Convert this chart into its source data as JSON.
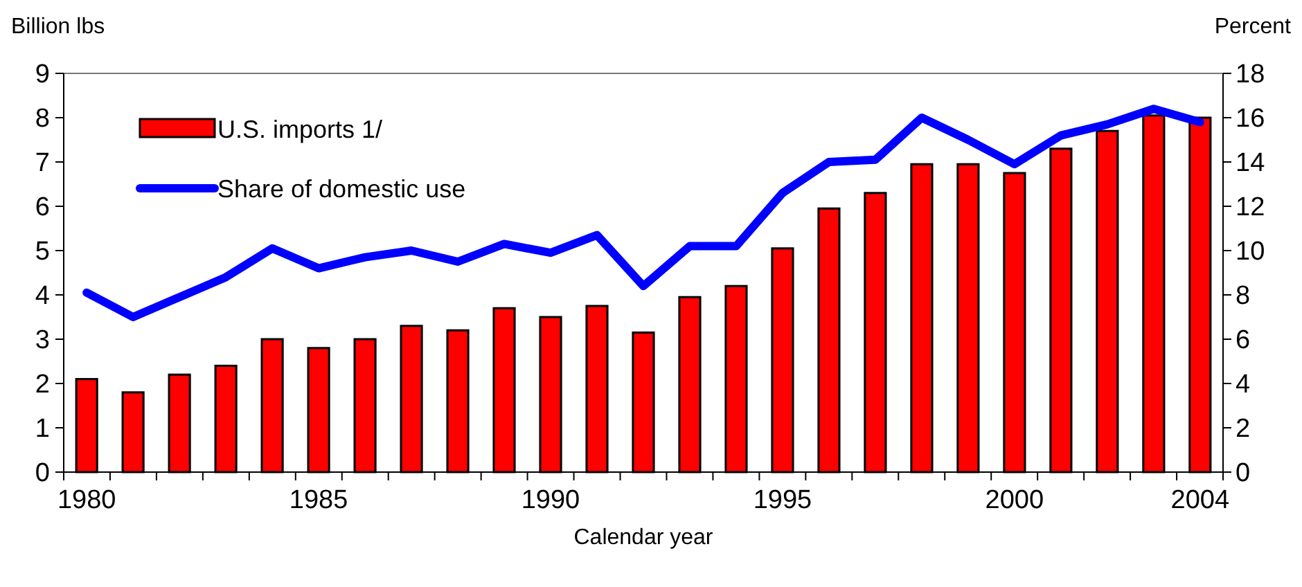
{
  "chart_data": {
    "type": "bar",
    "xlabel": "Calendar year",
    "ylabel": "Billion lbs",
    "y2label": "Percent",
    "categories": [
      "1980",
      null,
      null,
      null,
      null,
      "1985",
      null,
      null,
      null,
      null,
      "1990",
      null,
      null,
      null,
      null,
      "1995",
      null,
      null,
      null,
      null,
      "2000",
      null,
      null,
      null,
      "2004"
    ],
    "series": [
      {
        "name": "U.S. imports 1/",
        "color": "#ff0000",
        "values": [
          2.1,
          1.8,
          2.2,
          2.4,
          3.0,
          2.8,
          3.0,
          3.3,
          3.2,
          3.7,
          3.5,
          3.75,
          3.15,
          3.95,
          4.2,
          5.05,
          5.95,
          6.3,
          6.95,
          6.95,
          6.75,
          7.3,
          7.7,
          8.05,
          8.0
        ]
      },
      {
        "name": "Share of domestic use",
        "type": "line",
        "axis": "y2",
        "color": "#0000ff",
        "values": [
          8.1,
          7.0,
          7.9,
          8.8,
          10.1,
          9.2,
          9.7,
          10.0,
          9.5,
          10.3,
          9.9,
          10.7,
          8.4,
          10.2,
          10.2,
          12.6,
          14.0,
          14.1,
          16.0,
          15.0,
          13.9,
          15.2,
          15.7,
          16.4,
          15.8
        ]
      }
    ],
    "ylim": [
      0,
      9
    ],
    "yticks": [
      0,
      1,
      2,
      3,
      4,
      5,
      6,
      7,
      8,
      9
    ],
    "y2lim": [
      0,
      18
    ],
    "y2ticks": [
      0,
      2,
      4,
      6,
      8,
      10,
      12,
      14,
      16,
      18
    ],
    "legend": "top left",
    "grid": false,
    "marker": "none",
    "line_style": "solid"
  }
}
